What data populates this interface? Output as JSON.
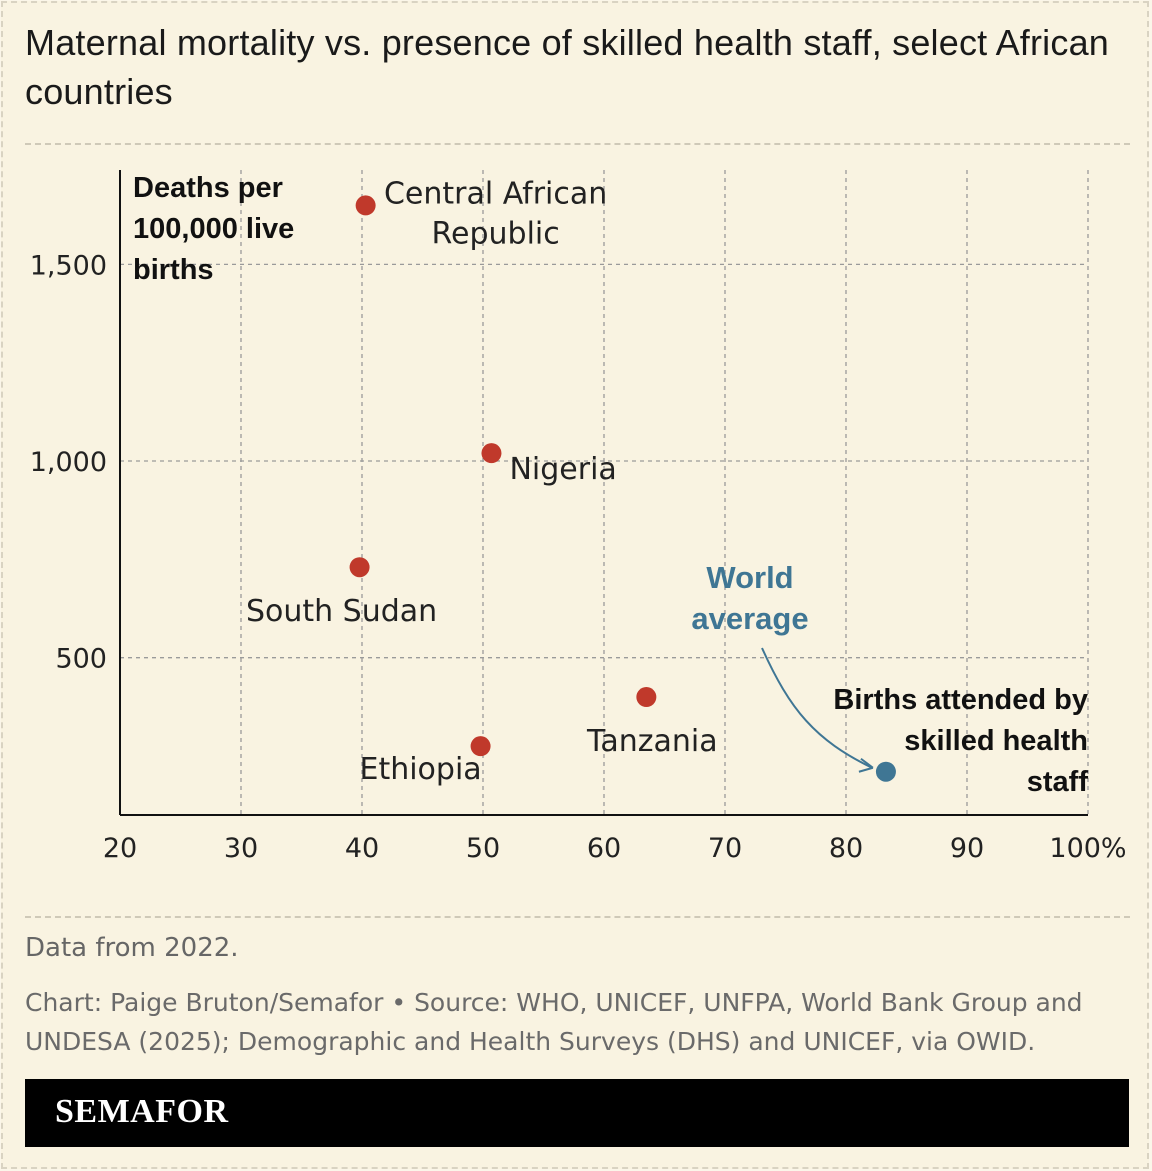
{
  "title": "Maternal mortality vs. presence of skilled health staff, select African countries",
  "note": "Data from 2022.",
  "credit": "Chart: Paige Bruton/Semafor • Source: WHO, UNICEF, UNFPA, World Bank Group and UNDESA (2025); Demographic and Health Surveys (DHS) and UNICEF, via OWID.",
  "brand": "SEMAFOR",
  "colors": {
    "country": "#c0392b",
    "world": "#3f7694",
    "background": "#f9f3e1"
  },
  "chart_data": {
    "type": "scatter",
    "title": "Maternal mortality vs. presence of skilled health staff, select African countries",
    "xlabel": "Births attended by skilled health staff",
    "ylabel": "Deaths per 100,000 live births",
    "xlim": [
      20,
      100
    ],
    "ylim": [
      100,
      1740
    ],
    "xticks": [
      20,
      30,
      40,
      50,
      60,
      70,
      80,
      90,
      100
    ],
    "xtick_labels": [
      "20",
      "30",
      "40",
      "50",
      "60",
      "70",
      "80",
      "90",
      "100%"
    ],
    "yticks": [
      500,
      1000,
      1500
    ],
    "ytick_labels": [
      "500",
      "1,000",
      "1,500"
    ],
    "grid": true,
    "series": [
      {
        "points": [
          {
            "label": "Central African Republic",
            "x": 40.3,
            "y": 1650
          },
          {
            "label": "Nigeria",
            "x": 50.7,
            "y": 1020
          },
          {
            "label": "South Sudan",
            "x": 39.8,
            "y": 730
          },
          {
            "label": "Tanzania",
            "x": 63.5,
            "y": 400
          },
          {
            "label": "Ethiopia",
            "x": 49.8,
            "y": 275
          }
        ]
      },
      {
        "points": [
          {
            "label": "World average",
            "x": 83.3,
            "y": 210
          }
        ]
      }
    ]
  }
}
